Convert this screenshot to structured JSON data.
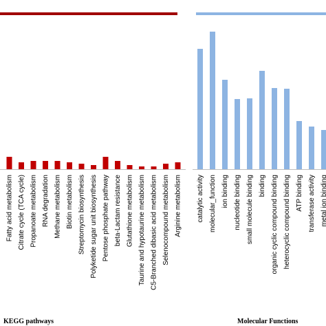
{
  "chart_data": [
    {
      "type": "bar",
      "group_label": "KEGG pathways",
      "color": "#c00000",
      "categories": [
        "Fatty acid metabolism",
        "Citrate cycle (TCA cycle)",
        "Propanoate metabolism",
        "RNA degradation",
        "Methane metabolism",
        "Biotin metabolism",
        "Streptomycin biosynthesis",
        "Polyketide sugar unit biosynthesis",
        "Pentose phosphate pathway",
        "beta-Lactam resistance",
        "Glutathione metabolism",
        "Taurine and hypotaurine metabolism",
        "C5-Branched dibasic acid metabolism",
        "Selenocompound metabolism",
        "Arginine metabolism"
      ],
      "values": [
        18,
        10,
        12,
        12,
        12,
        10,
        8,
        6,
        18,
        12,
        6,
        4,
        4,
        8,
        10
      ]
    },
    {
      "type": "bar",
      "group_label": "Molecular Functions",
      "color": "#8db4e2",
      "categories": [
        "catalytic activity",
        "molecular_function",
        "ion binding",
        "nucleotide binding",
        "small molecule binding",
        "binding",
        "organic cyclic compound binding",
        "heterocyclic compound binding",
        "ATP binding",
        "transferase activity",
        "metal ion binding"
      ],
      "values": [
        175,
        200,
        130,
        102,
        103,
        143,
        118,
        117,
        70,
        62,
        57
      ]
    }
  ]
}
